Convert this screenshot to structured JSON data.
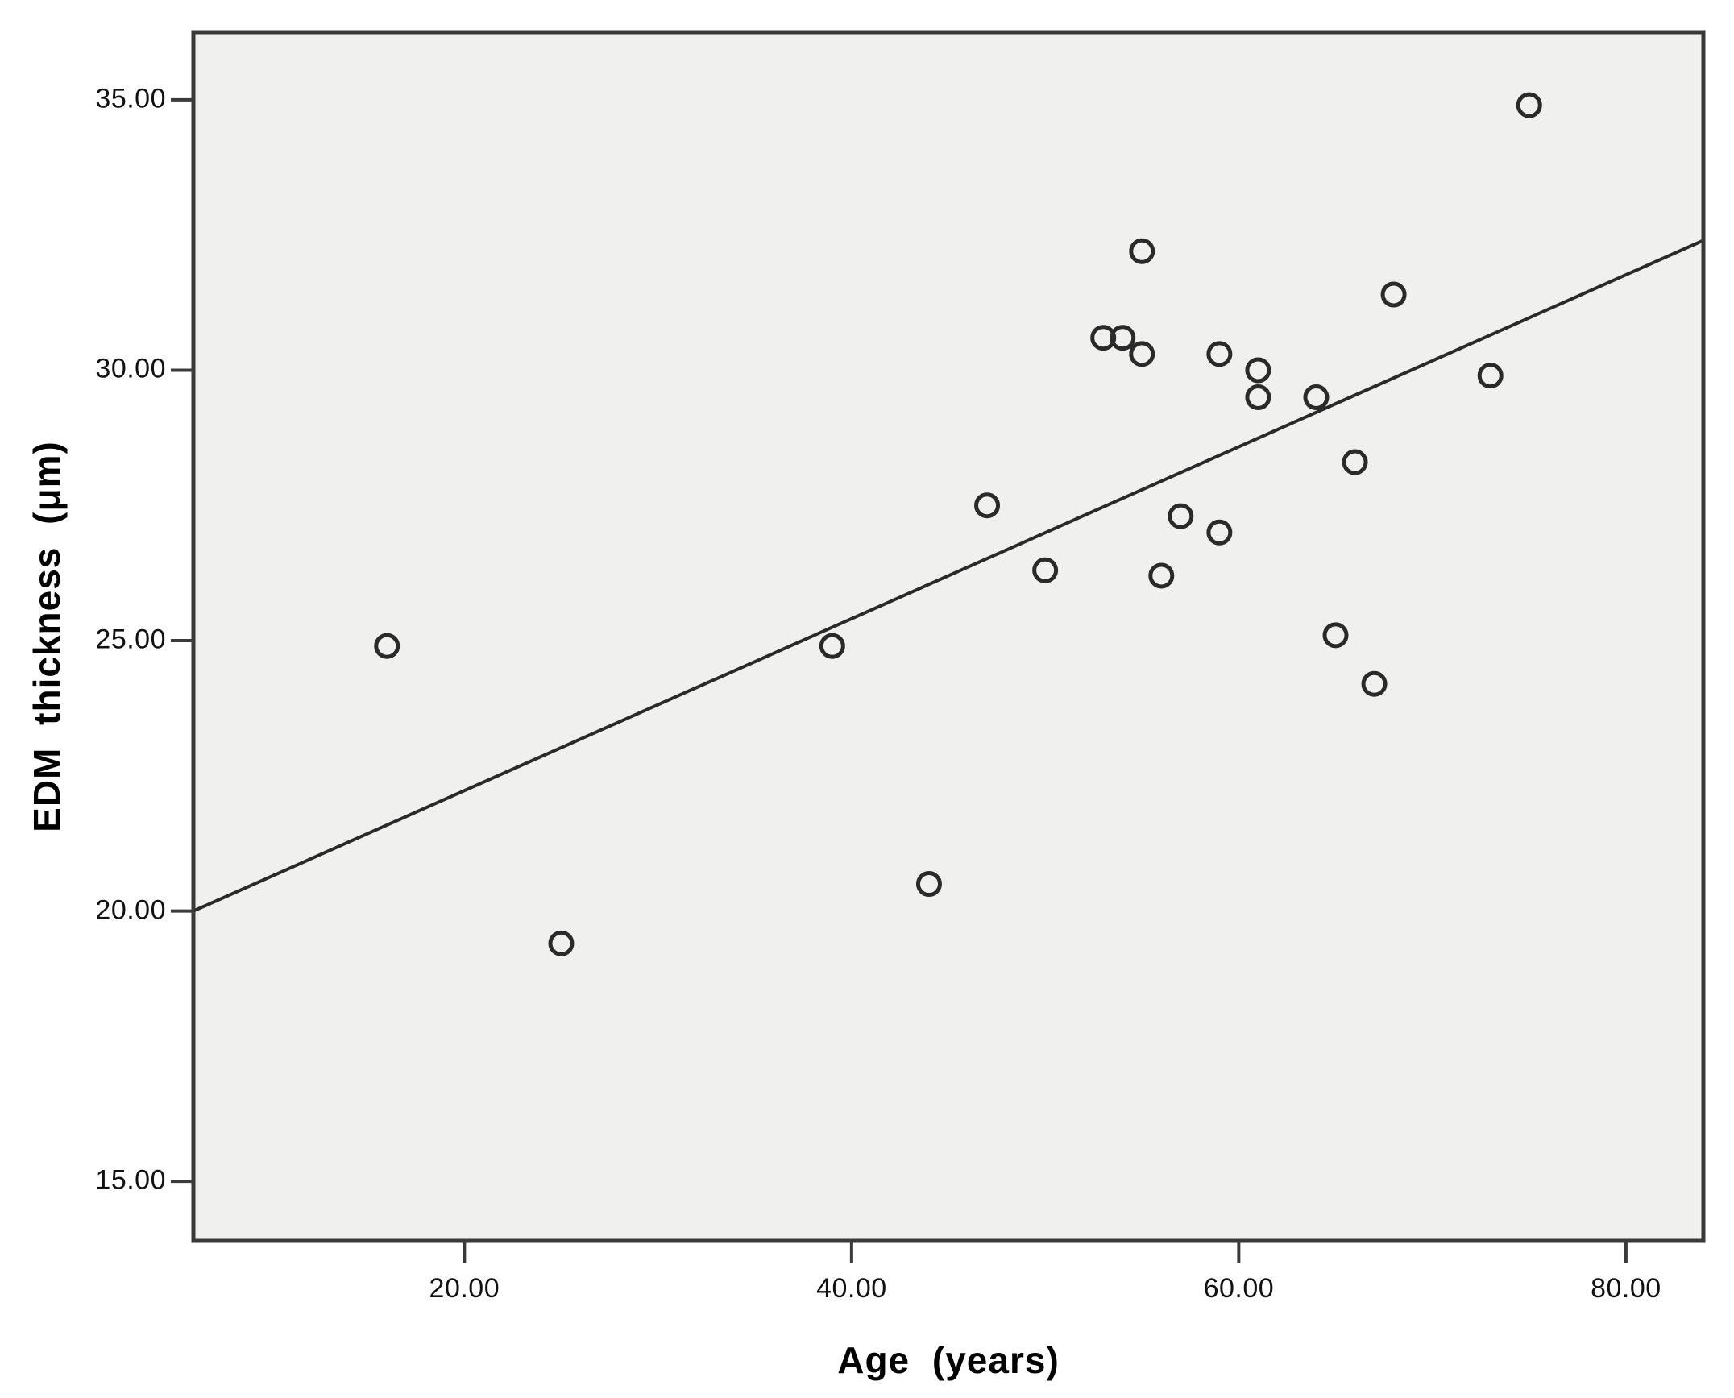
{
  "chart_data": {
    "type": "scatter",
    "title": "",
    "xlabel": "Age (years)",
    "ylabel": "EDM thickness (μm)",
    "xlim": [
      6,
      84
    ],
    "ylim": [
      13.9,
      36.25
    ],
    "grid": false,
    "legend": "none",
    "marker": "open-circle",
    "x_ticks": [
      {
        "value": 20,
        "label": "20.00"
      },
      {
        "value": 40,
        "label": "40.00"
      },
      {
        "value": 60,
        "label": "60.00"
      },
      {
        "value": 80,
        "label": "80.00"
      }
    ],
    "y_ticks": [
      {
        "value": 15,
        "label": "15.00"
      },
      {
        "value": 20,
        "label": "20.00"
      },
      {
        "value": 25,
        "label": "25.00"
      },
      {
        "value": 30,
        "label": "30.00"
      },
      {
        "value": 35,
        "label": "35.00"
      }
    ],
    "points": [
      {
        "x": 16,
        "y": 24.9
      },
      {
        "x": 25,
        "y": 19.4
      },
      {
        "x": 39,
        "y": 24.9
      },
      {
        "x": 44,
        "y": 20.5
      },
      {
        "x": 47,
        "y": 27.5
      },
      {
        "x": 50,
        "y": 26.3
      },
      {
        "x": 53,
        "y": 30.6
      },
      {
        "x": 54,
        "y": 30.6
      },
      {
        "x": 55,
        "y": 32.2
      },
      {
        "x": 55,
        "y": 30.3
      },
      {
        "x": 56,
        "y": 26.2
      },
      {
        "x": 57,
        "y": 27.3
      },
      {
        "x": 59,
        "y": 30.3
      },
      {
        "x": 59,
        "y": 27.0
      },
      {
        "x": 61,
        "y": 30.0
      },
      {
        "x": 61,
        "y": 29.5
      },
      {
        "x": 64,
        "y": 29.5
      },
      {
        "x": 65,
        "y": 25.1
      },
      {
        "x": 66,
        "y": 28.3
      },
      {
        "x": 67,
        "y": 24.2
      },
      {
        "x": 68,
        "y": 31.4
      },
      {
        "x": 73,
        "y": 29.9
      },
      {
        "x": 75,
        "y": 34.9
      }
    ],
    "fit_line": {
      "x1": 6,
      "y1": 20.0,
      "x2": 84,
      "y2": 32.4
    },
    "colors": {
      "plot_background": "#f0f0ee",
      "axis_frame": "#3a3a3a",
      "marker_stroke": "#2a2a2a",
      "fit_line": "#2a2a2a",
      "tick_text": "#111111",
      "title_text": "#000000"
    }
  }
}
